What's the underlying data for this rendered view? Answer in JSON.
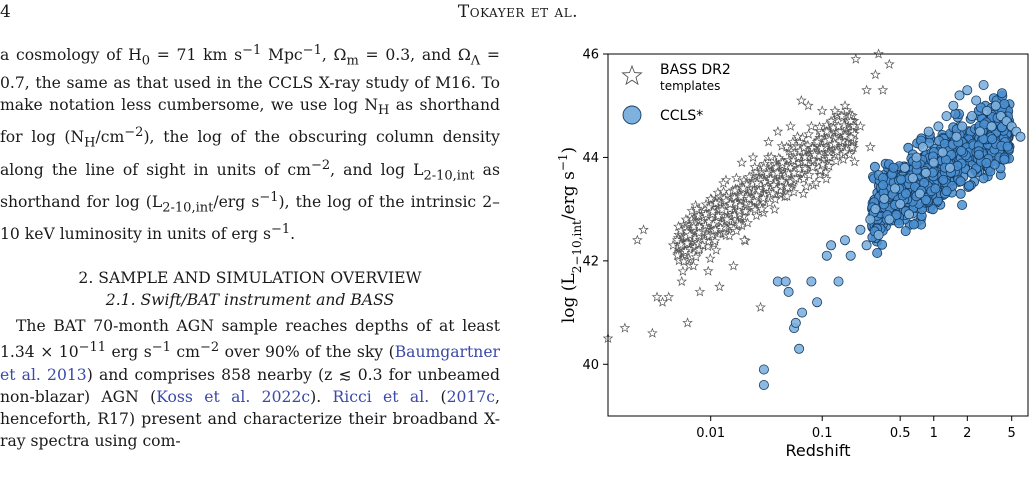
{
  "header": {
    "page_number": "4",
    "running_head": "Tokayer et al."
  },
  "body": {
    "paragraph1": [
      "a cosmology of H",
      "0",
      " = 71 km s",
      "−1",
      " Mpc",
      "−1",
      ", Ω",
      "m",
      " = 0.3, and Ω",
      "Λ",
      " = 0.7, the same as that used in the CCLS X-ray study of M16. To make notation less cumbersome, we use log N",
      "H",
      " as shorthand for log (N",
      "H",
      "/cm",
      "−2",
      "), the log of the obscuring column density along the line of sight in units of cm",
      "−2",
      ", and log L",
      "2-10,int",
      " as shorthand for log (L",
      "2-10,int",
      "/erg s",
      "−1",
      "), the log of the intrinsic 2–10 keV luminosity in units of erg s",
      "−1",
      "."
    ],
    "section_title": "2. SAMPLE AND SIMULATION OVERVIEW",
    "subsection_title": "2.1. Swift/BAT instrument and BASS",
    "paragraph2": [
      "The BAT 70-month AGN sample reaches depths of at least 1.34 × 10",
      "−11",
      " erg s",
      "−1",
      " cm",
      "−2",
      " over 90% of the sky (",
      "Baumgartner et al. 2013",
      ") and comprises 858 nearby (z ≲ 0.3 for unbeamed non-blazar) AGN (",
      "Koss et al. 2022c",
      "). ",
      "Ricci et al.",
      " (",
      "2017c",
      ", henceforth, R17) present and characterize their broadband X-ray spectra using com-"
    ]
  },
  "chart_data": {
    "type": "scatter",
    "xscale": "log",
    "xlabel": "Redshift",
    "ylabel": "log (L2−10,int/erg s−1)",
    "ylabel_parts": [
      "log (L",
      "2−10,int",
      "/erg s",
      "−1",
      ")"
    ],
    "xlim": [
      0.0012,
      7.0
    ],
    "ylim": [
      39.0,
      46.0
    ],
    "x_ticks": [
      0.01,
      0.1,
      0.5,
      1,
      2,
      5
    ],
    "x_tick_labels": [
      "0.01",
      "0.1",
      "0.5",
      "1",
      "2",
      "5"
    ],
    "y_ticks": [
      40,
      42,
      44,
      46
    ],
    "y_tick_labels": [
      "40",
      "42",
      "44",
      "46"
    ],
    "legend_position": "top-left",
    "colors": {
      "bass": "#555555",
      "ccls_fill": "#4a8fd0",
      "ccls_edge": "#163a5e"
    },
    "series": [
      {
        "name": "BASS DR2",
        "name_line2": "templates",
        "marker": "star",
        "points": [
          [
            0.0012,
            40.5
          ],
          [
            0.0017,
            40.7
          ],
          [
            0.0022,
            42.4
          ],
          [
            0.0025,
            42.6
          ],
          [
            0.003,
            40.6
          ],
          [
            0.0033,
            41.3
          ],
          [
            0.0037,
            41.2
          ],
          [
            0.0042,
            41.3
          ],
          [
            0.0046,
            42.3
          ],
          [
            0.005,
            42.4
          ],
          [
            0.0055,
            41.6
          ],
          [
            0.006,
            42.8
          ],
          [
            0.0062,
            40.8
          ],
          [
            0.0065,
            42.5
          ],
          [
            0.007,
            41.9
          ],
          [
            0.0075,
            43.0
          ],
          [
            0.008,
            41.4
          ],
          [
            0.0085,
            42.3
          ],
          [
            0.009,
            42.9
          ],
          [
            0.0095,
            41.8
          ],
          [
            0.01,
            43.2
          ],
          [
            0.011,
            42.6
          ],
          [
            0.012,
            41.5
          ],
          [
            0.013,
            43.5
          ],
          [
            0.014,
            42.8
          ],
          [
            0.015,
            43.1
          ],
          [
            0.016,
            41.9
          ],
          [
            0.017,
            43.6
          ],
          [
            0.018,
            42.7
          ],
          [
            0.019,
            43.9
          ],
          [
            0.02,
            42.4
          ],
          [
            0.022,
            43.2
          ],
          [
            0.024,
            44.0
          ],
          [
            0.026,
            43.5
          ],
          [
            0.028,
            41.1
          ],
          [
            0.03,
            43.8
          ],
          [
            0.033,
            44.3
          ],
          [
            0.036,
            43.3
          ],
          [
            0.04,
            44.5
          ],
          [
            0.044,
            43.9
          ],
          [
            0.048,
            44.2
          ],
          [
            0.052,
            44.6
          ],
          [
            0.056,
            43.7
          ],
          [
            0.06,
            44.4
          ],
          [
            0.065,
            45.1
          ],
          [
            0.07,
            44.0
          ],
          [
            0.075,
            45.0
          ],
          [
            0.08,
            44.6
          ],
          [
            0.09,
            44.3
          ],
          [
            0.1,
            44.9
          ],
          [
            0.11,
            44.5
          ],
          [
            0.12,
            44.7
          ],
          [
            0.13,
            44.9
          ],
          [
            0.14,
            44.6
          ],
          [
            0.15,
            44.8
          ],
          [
            0.16,
            45.0
          ],
          [
            0.18,
            44.7
          ],
          [
            0.2,
            45.9
          ],
          [
            0.22,
            44.6
          ],
          [
            0.25,
            45.3
          ],
          [
            0.27,
            44.2
          ],
          [
            0.3,
            45.6
          ],
          [
            0.32,
            46.0
          ],
          [
            0.35,
            45.3
          ],
          [
            0.4,
            45.8
          ]
        ]
      },
      {
        "name": "CCLS*",
        "marker": "circle",
        "points": [
          [
            0.03,
            39.9
          ],
          [
            0.03,
            39.6
          ],
          [
            0.04,
            41.6
          ],
          [
            0.047,
            41.6
          ],
          [
            0.05,
            41.4
          ],
          [
            0.056,
            40.7
          ],
          [
            0.058,
            40.8
          ],
          [
            0.062,
            40.3
          ],
          [
            0.066,
            41.0
          ],
          [
            0.08,
            41.6
          ],
          [
            0.09,
            41.2
          ],
          [
            0.11,
            42.1
          ],
          [
            0.12,
            42.3
          ],
          [
            0.14,
            41.6
          ],
          [
            0.16,
            42.4
          ],
          [
            0.18,
            42.1
          ],
          [
            0.22,
            42.6
          ],
          [
            0.25,
            42.3
          ],
          [
            0.27,
            42.8
          ],
          [
            0.3,
            43.0
          ],
          [
            0.32,
            42.5
          ],
          [
            0.36,
            43.2
          ],
          [
            0.4,
            42.8
          ],
          [
            0.45,
            43.4
          ],
          [
            0.5,
            43.1
          ],
          [
            0.55,
            43.8
          ],
          [
            0.6,
            42.9
          ],
          [
            0.65,
            43.6
          ],
          [
            0.7,
            44.0
          ],
          [
            0.75,
            43.3
          ],
          [
            0.8,
            44.2
          ],
          [
            0.85,
            43.7
          ],
          [
            0.9,
            44.5
          ],
          [
            1.0,
            43.9
          ],
          [
            1.1,
            44.6
          ],
          [
            1.2,
            44.1
          ],
          [
            1.3,
            44.8
          ],
          [
            1.4,
            43.8
          ],
          [
            1.5,
            45.0
          ],
          [
            1.6,
            44.4
          ],
          [
            1.7,
            45.2
          ],
          [
            1.8,
            44.6
          ],
          [
            2.0,
            45.3
          ],
          [
            2.2,
            44.8
          ],
          [
            2.4,
            45.1
          ],
          [
            2.6,
            44.5
          ],
          [
            2.8,
            45.4
          ],
          [
            3.0,
            44.9
          ],
          [
            3.3,
            44.6
          ],
          [
            3.6,
            45.0
          ],
          [
            4.0,
            44.8
          ],
          [
            4.5,
            44.7
          ],
          [
            5.0,
            44.6
          ],
          [
            5.5,
            44.5
          ],
          [
            6.0,
            44.4
          ]
        ]
      }
    ]
  }
}
